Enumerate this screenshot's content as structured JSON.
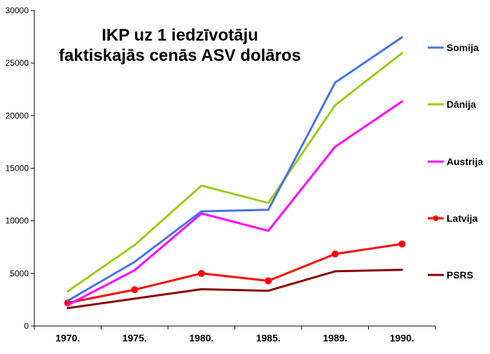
{
  "chart_data": {
    "type": "line",
    "title": [
      "IKP uz 1 iedzīvotāju",
      "faktiskajās cenās ASV dolāros"
    ],
    "categories": [
      "1970.",
      "1975.",
      "1980.",
      "1985.",
      "1989.",
      "1990."
    ],
    "ylim": [
      0,
      30000
    ],
    "yticks": [
      "0",
      "5000",
      "10000",
      "15000",
      "20000",
      "25000",
      "30000"
    ],
    "ytick_values": [
      0,
      5000,
      10000,
      15000,
      20000,
      25000,
      30000
    ],
    "grid": false,
    "legend_position": "right",
    "series": [
      {
        "name": "Somija",
        "color": "#4472f0",
        "markers": false,
        "values": [
          2400,
          6100,
          10900,
          11050,
          23150,
          27450
        ]
      },
      {
        "name": "Dānija",
        "color": "#99cc11",
        "markers": false,
        "values": [
          3300,
          7700,
          13350,
          11700,
          21000,
          25950
        ]
      },
      {
        "name": "Austrija",
        "color": "#ff00ff",
        "markers": false,
        "values": [
          2000,
          5300,
          10700,
          9050,
          17050,
          21350
        ]
      },
      {
        "name": "Latvija",
        "color": "#ff0000",
        "markers": true,
        "values": [
          2200,
          3450,
          5000,
          4300,
          6850,
          7800
        ]
      },
      {
        "name": "PSRS",
        "color": "#8b0000",
        "markers": false,
        "values": [
          1700,
          2600,
          3500,
          3350,
          5200,
          5350
        ]
      }
    ]
  }
}
